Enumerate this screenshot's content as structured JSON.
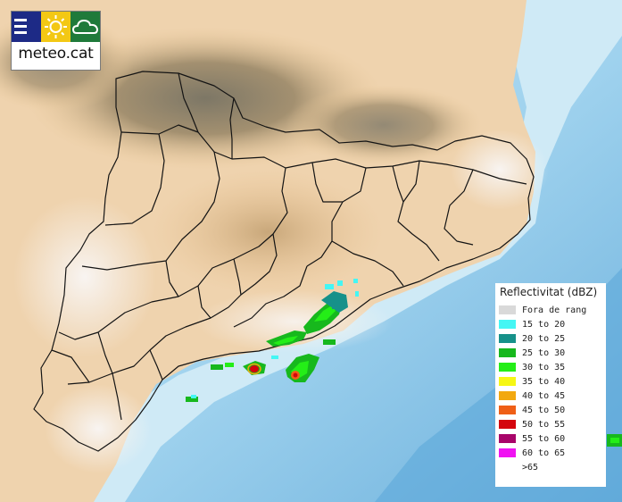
{
  "logo": {
    "brand": "meteo.cat",
    "icons": [
      "menu-icon",
      "sun-icon",
      "cloud-icon"
    ],
    "colors": {
      "menu": "#1d2a86",
      "sun": "#f3c814",
      "cloud": "#1f7a3a"
    }
  },
  "legend": {
    "title": "Reflectivitat (dBZ)",
    "items": [
      {
        "label": "Fora de rang",
        "color": "#d9d9d9"
      },
      {
        "label": "15 to 20",
        "color": "#44f6f4"
      },
      {
        "label": "20 to 25",
        "color": "#16918a"
      },
      {
        "label": "25 to 30",
        "color": "#17b81d"
      },
      {
        "label": "30 to 35",
        "color": "#24ee17"
      },
      {
        "label": "35 to 40",
        "color": "#f6f714"
      },
      {
        "label": "40 to 45",
        "color": "#f2a80f"
      },
      {
        "label": "45 to 50",
        "color": "#ef5f16"
      },
      {
        "label": "50 to 55",
        "color": "#d4050d"
      },
      {
        "label": "55 to 60",
        "color": "#a8056a"
      },
      {
        "label": "60 to 65",
        "color": "#f012f2"
      },
      {
        "label": ">65",
        "color": "#ffffff"
      }
    ]
  },
  "map": {
    "region": "Catalonia",
    "colors": {
      "land_low": "#f6f2ee",
      "land_mid": "#ecc594",
      "land_high": "#8e8368",
      "sea_shallow": "#c3e7f6",
      "sea_deep": "#6fb4df",
      "borders": "#111111"
    }
  }
}
